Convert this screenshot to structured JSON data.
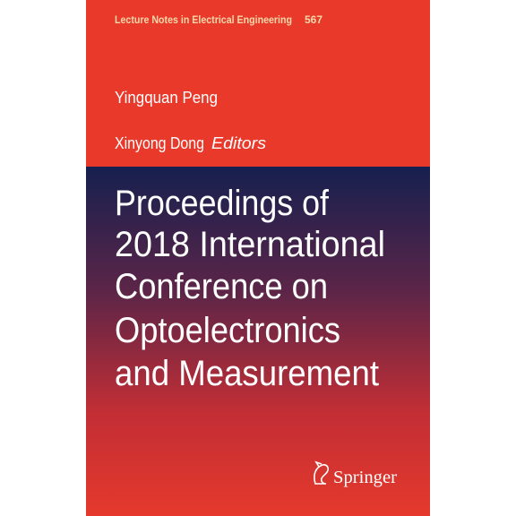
{
  "series": {
    "name": "Lecture Notes in Electrical Engineering",
    "number": "567"
  },
  "editors": [
    "Yingquan Peng",
    "Xinyong Dong"
  ],
  "editors_label": "Editors",
  "title_lines": [
    "Proceedings of",
    "2018 International",
    "Conference on",
    "Optoelectronics",
    "and Measurement"
  ],
  "publisher": "Springer"
}
